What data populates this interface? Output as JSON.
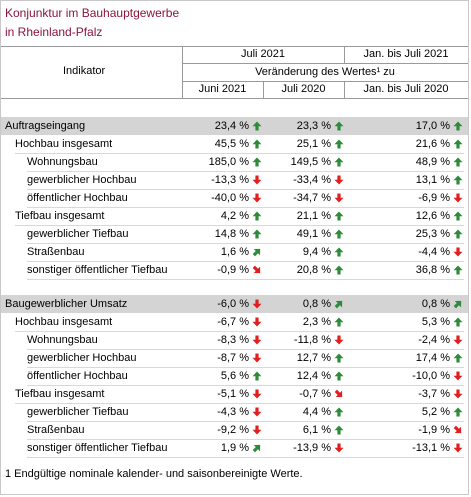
{
  "title_lines": [
    "Konjunktur im Bauhauptgewerbe",
    "in Rheinland-Pfalz"
  ],
  "header": {
    "indikator": "Indikator",
    "group_july": "Juli 2021",
    "group_jan": "Jan. bis Juli 2021",
    "change_label": "Veränderung des Wertes¹ zu",
    "col_june": "Juni 2021",
    "col_july2020": "Juli 2020",
    "col_jan2020": "Jan. bis Juli 2020"
  },
  "colors": {
    "title": "#8b1538",
    "up": "#2e8b3a",
    "down": "#e02020"
  },
  "sections": [
    {
      "rows": [
        {
          "label": "Auftragseingang",
          "level": 0,
          "section": true,
          "v1": "23,4 %",
          "a1": "up",
          "v2": "23,3 %",
          "a2": "up",
          "v3": "17,0 %",
          "a3": "up"
        },
        {
          "label": "Hochbau insgesamt",
          "level": 1,
          "v1": "45,5 %",
          "a1": "up",
          "v2": "25,1 %",
          "a2": "up",
          "v3": "21,6 %",
          "a3": "up"
        },
        {
          "label": "Wohnungsbau",
          "level": 2,
          "v1": "185,0 %",
          "a1": "up",
          "v2": "149,5 %",
          "a2": "up",
          "v3": "48,9 %",
          "a3": "up"
        },
        {
          "label": "gewerblicher Hochbau",
          "level": 2,
          "v1": "-13,3 %",
          "a1": "down",
          "v2": "-33,4 %",
          "a2": "down",
          "v3": "13,1 %",
          "a3": "up"
        },
        {
          "label": "öffentlicher Hochbau",
          "level": 2,
          "v1": "-40,0 %",
          "a1": "down",
          "v2": "-34,7 %",
          "a2": "down",
          "v3": "-6,9 %",
          "a3": "down"
        },
        {
          "label": "Tiefbau insgesamt",
          "level": 1,
          "v1": "4,2 %",
          "a1": "up",
          "v2": "21,1 %",
          "a2": "up",
          "v3": "12,6 %",
          "a3": "up"
        },
        {
          "label": "gewerblicher Tiefbau",
          "level": 2,
          "v1": "14,8 %",
          "a1": "up",
          "v2": "49,1 %",
          "a2": "up",
          "v3": "25,3 %",
          "a3": "up"
        },
        {
          "label": "Straßenbau",
          "level": 2,
          "v1": "1,6 %",
          "a1": "up-right",
          "v2": "9,4 %",
          "a2": "up",
          "v3": "-4,4 %",
          "a3": "down"
        },
        {
          "label": "sonstiger öffentlicher Tiefbau",
          "level": 2,
          "v1": "-0,9 %",
          "a1": "down-right",
          "v2": "20,8 %",
          "a2": "up",
          "v3": "36,8 %",
          "a3": "up"
        }
      ]
    },
    {
      "rows": [
        {
          "label": "Baugewerblicher Umsatz",
          "level": 0,
          "section": true,
          "v1": "-6,0 %",
          "a1": "down",
          "v2": "0,8 %",
          "a2": "up-right",
          "v3": "0,8 %",
          "a3": "up-right"
        },
        {
          "label": "Hochbau insgesamt",
          "level": 1,
          "v1": "-6,7 %",
          "a1": "down",
          "v2": "2,3 %",
          "a2": "up",
          "v3": "5,3 %",
          "a3": "up"
        },
        {
          "label": "Wohnungsbau",
          "level": 2,
          "v1": "-8,3 %",
          "a1": "down",
          "v2": "-11,8 %",
          "a2": "down",
          "v3": "-2,4 %",
          "a3": "down"
        },
        {
          "label": "gewerblicher Hochbau",
          "level": 2,
          "v1": "-8,7 %",
          "a1": "down",
          "v2": "12,7 %",
          "a2": "up",
          "v3": "17,4 %",
          "a3": "up"
        },
        {
          "label": "öffentlicher Hochbau",
          "level": 2,
          "v1": "5,6 %",
          "a1": "up",
          "v2": "12,4 %",
          "a2": "up",
          "v3": "-10,0 %",
          "a3": "down"
        },
        {
          "label": "Tiefbau insgesamt",
          "level": 1,
          "v1": "-5,1 %",
          "a1": "down",
          "v2": "-0,7 %",
          "a2": "down-right",
          "v3": "-3,7 %",
          "a3": "down"
        },
        {
          "label": "gewerblicher Tiefbau",
          "level": 2,
          "v1": "-4,3 %",
          "a1": "down",
          "v2": "4,4 %",
          "a2": "up",
          "v3": "5,2 %",
          "a3": "up"
        },
        {
          "label": "Straßenbau",
          "level": 2,
          "v1": "-9,2 %",
          "a1": "down",
          "v2": "6,1 %",
          "a2": "up",
          "v3": "-1,9 %",
          "a3": "down-right"
        },
        {
          "label": "sonstiger öffentlicher Tiefbau",
          "level": 2,
          "v1": "1,9 %",
          "a1": "up-right",
          "v2": "-13,9 %",
          "a2": "down",
          "v3": "-13,1 %",
          "a3": "down"
        }
      ]
    }
  ],
  "footnote": "1 Endgültige nominale kalender- und saisonbereinigte Werte."
}
